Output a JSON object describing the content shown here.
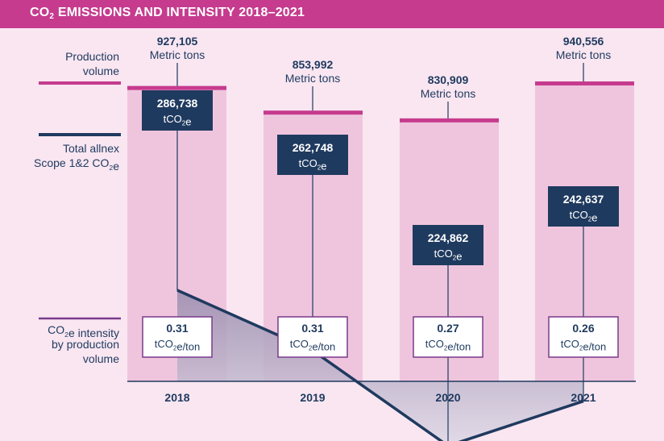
{
  "header": {
    "title_main": "CO",
    "title_sub": "2",
    "title_rest": " EMISSIONS AND INTENSITY 2018–2021"
  },
  "colors": {
    "header": "#c63b8e",
    "background": "#f9e6f1",
    "production_bar": "#efc5de",
    "production_line": "#c63b8e",
    "emissions_line": "#1f3a5f",
    "emissions_fill": "#9a8cad",
    "intensity_box_border": "#7a3a8c"
  },
  "row_labels": {
    "production": [
      "Production",
      "volume"
    ],
    "emissions": [
      "Total allnex",
      "Scope 1&2 CO₂e"
    ],
    "intensity": [
      "CO₂e intensity",
      "by production",
      "volume"
    ]
  },
  "chart_data": {
    "type": "bar",
    "title": "CO2 EMISSIONS AND INTENSITY 2018–2021",
    "categories": [
      "2018",
      "2019",
      "2020",
      "2021"
    ],
    "series": [
      {
        "name": "Production volume",
        "type": "bar",
        "values": [
          927105,
          853992,
          830909,
          940556
        ],
        "value_labels": [
          "927,105",
          "853,992",
          "830,909",
          "940,556"
        ],
        "unit": "Metric tons"
      },
      {
        "name": "Total allnex Scope 1&2 CO2e",
        "type": "area",
        "values": [
          286738,
          262748,
          224862,
          242637
        ],
        "value_labels": [
          "286,738",
          "262,748",
          "224,862",
          "242,637"
        ],
        "unit": "tCO₂e"
      },
      {
        "name": "CO2e intensity by production volume",
        "type": "table",
        "values": [
          0.31,
          0.31,
          0.27,
          0.26
        ],
        "value_labels": [
          "0.31",
          "0.31",
          "0.27",
          "0.26"
        ],
        "unit": "tCO₂e/ton"
      }
    ]
  }
}
